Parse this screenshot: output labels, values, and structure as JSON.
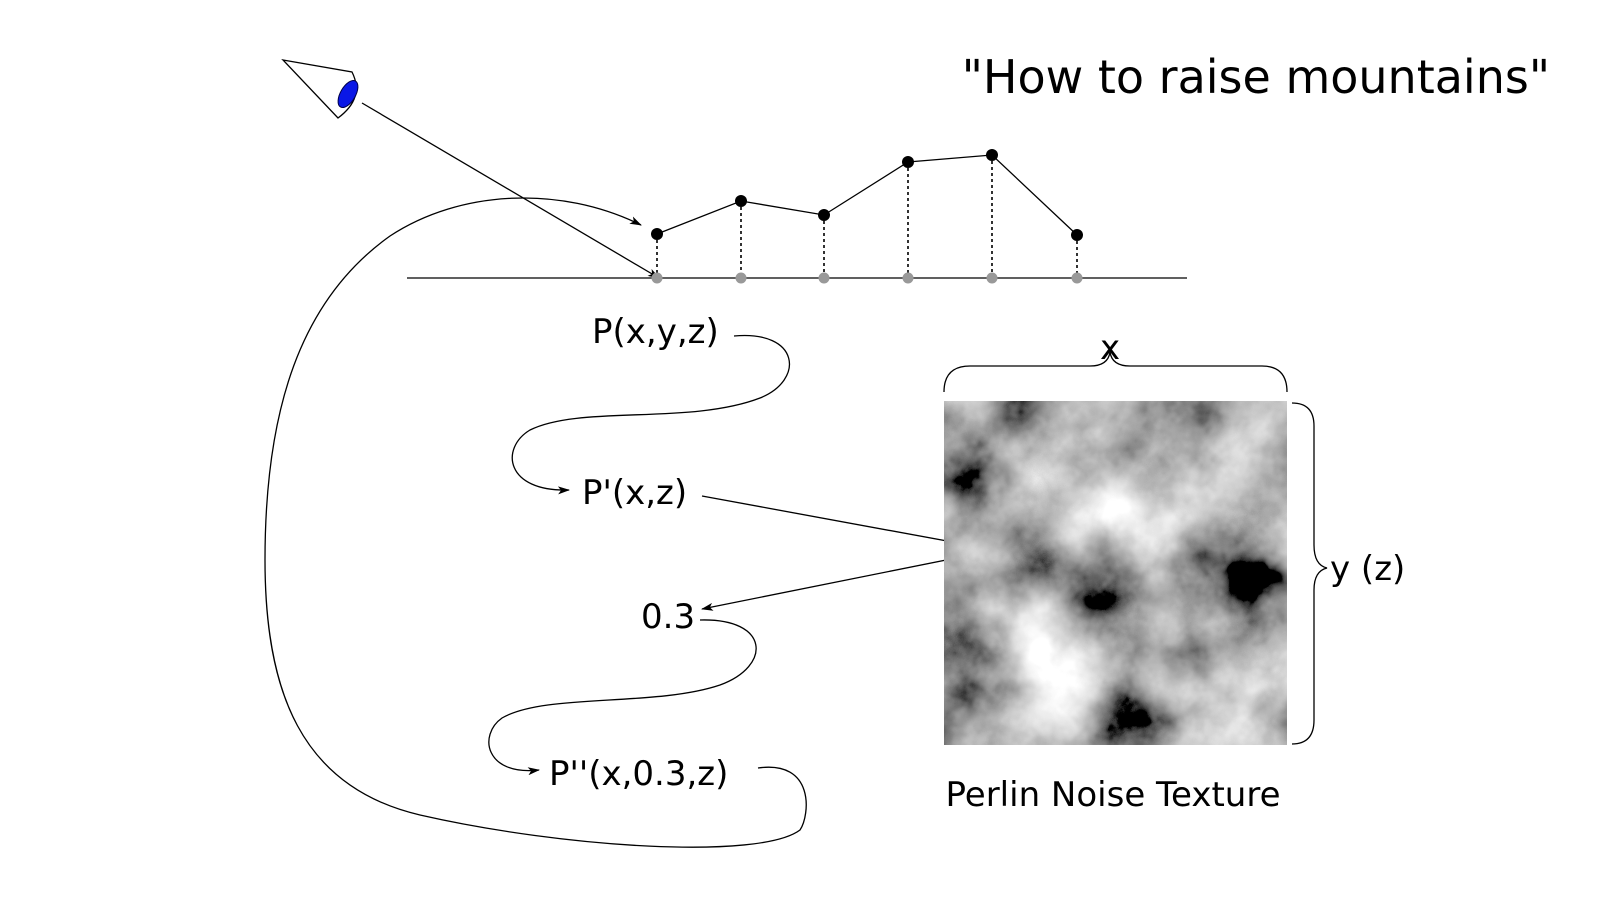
{
  "title": "\"How to raise mountains\"",
  "labels": {
    "point": "P(x,y,z)",
    "point_projected": "P'(x,z)",
    "sample_value": "0.3",
    "point_raised": "P''(x,0.3,z)",
    "texture_width": "x",
    "texture_height": "y (z)",
    "texture_caption": "Perlin Noise Texture"
  },
  "colors": {
    "eye_pupil": "#0a17e6",
    "line": "#000000",
    "ground_point": "#999999",
    "height_point": "#000000"
  },
  "icons": {
    "eye": "eye-icon"
  }
}
